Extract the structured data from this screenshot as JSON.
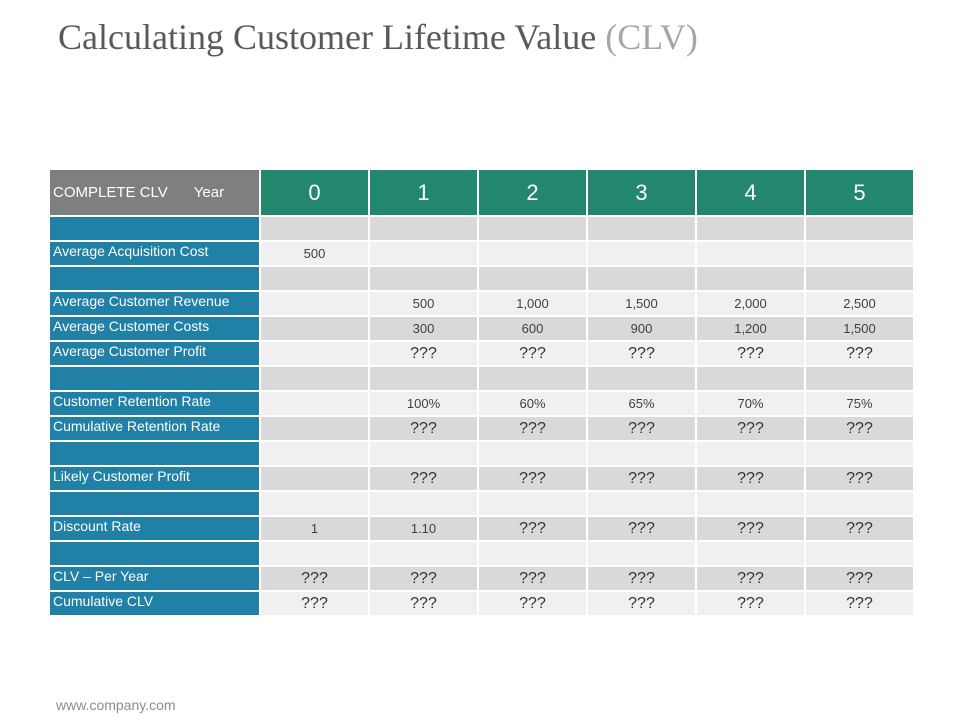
{
  "title": {
    "main": "Calculating Customer Lifetime Value",
    "accent": "(CLV)"
  },
  "table": {
    "header_label": "COMPLETE CLV",
    "header_year_label": "Year",
    "years": [
      "0",
      "1",
      "2",
      "3",
      "4",
      "5"
    ],
    "rows": [
      {
        "label": "",
        "cells": [
          "",
          "",
          "",
          "",
          "",
          ""
        ]
      },
      {
        "label": "Average Acquisition Cost",
        "cells": [
          "500",
          "",
          "",
          "",
          "",
          ""
        ]
      },
      {
        "label": "",
        "cells": [
          "",
          "",
          "",
          "",
          "",
          ""
        ]
      },
      {
        "label": "Average Customer Revenue",
        "cells": [
          "",
          "500",
          "1,000",
          "1,500",
          "2,000",
          "2,500"
        ]
      },
      {
        "label": "Average Customer Costs",
        "cells": [
          "",
          "300",
          "600",
          "900",
          "1,200",
          "1,500"
        ]
      },
      {
        "label": "Average Customer Profit",
        "cells": [
          "",
          "???",
          "???",
          "???",
          "???",
          "???"
        ]
      },
      {
        "label": "",
        "cells": [
          "",
          "",
          "",
          "",
          "",
          ""
        ]
      },
      {
        "label": "Customer Retention Rate",
        "cells": [
          "",
          "100%",
          "60%",
          "65%",
          "70%",
          "75%"
        ]
      },
      {
        "label": "Cumulative Retention Rate",
        "cells": [
          "",
          "???",
          "???",
          "???",
          "???",
          "???"
        ]
      },
      {
        "label": "",
        "cells": [
          "",
          "",
          "",
          "",
          "",
          ""
        ]
      },
      {
        "label": "Likely Customer Profit",
        "cells": [
          "",
          "???",
          "???",
          "???",
          "???",
          "???"
        ]
      },
      {
        "label": "",
        "cells": [
          "",
          "",
          "",
          "",
          "",
          ""
        ]
      },
      {
        "label": "Discount Rate",
        "cells": [
          "1",
          "1.10",
          "???",
          "???",
          "???",
          "???"
        ]
      },
      {
        "label": "",
        "cells": [
          "",
          "",
          "",
          "",
          "",
          ""
        ]
      },
      {
        "label": "CLV – Per Year",
        "cells": [
          "???",
          "???",
          "???",
          "???",
          "???",
          "???"
        ]
      },
      {
        "label": "Cumulative CLV",
        "cells": [
          "???",
          "???",
          "???",
          "???",
          "???",
          "???"
        ]
      }
    ]
  },
  "footer": {
    "url": "www.company.com"
  },
  "colors": {
    "header_label_bg": "#7f7f7f",
    "header_year_bg": "#22876d",
    "row_label_bg": "#2080a6",
    "cell_bg_dark": "#d9d9d9",
    "cell_bg_light": "#f0f0f0",
    "title_text": "#595959",
    "title_accent": "#a6a6a6"
  }
}
